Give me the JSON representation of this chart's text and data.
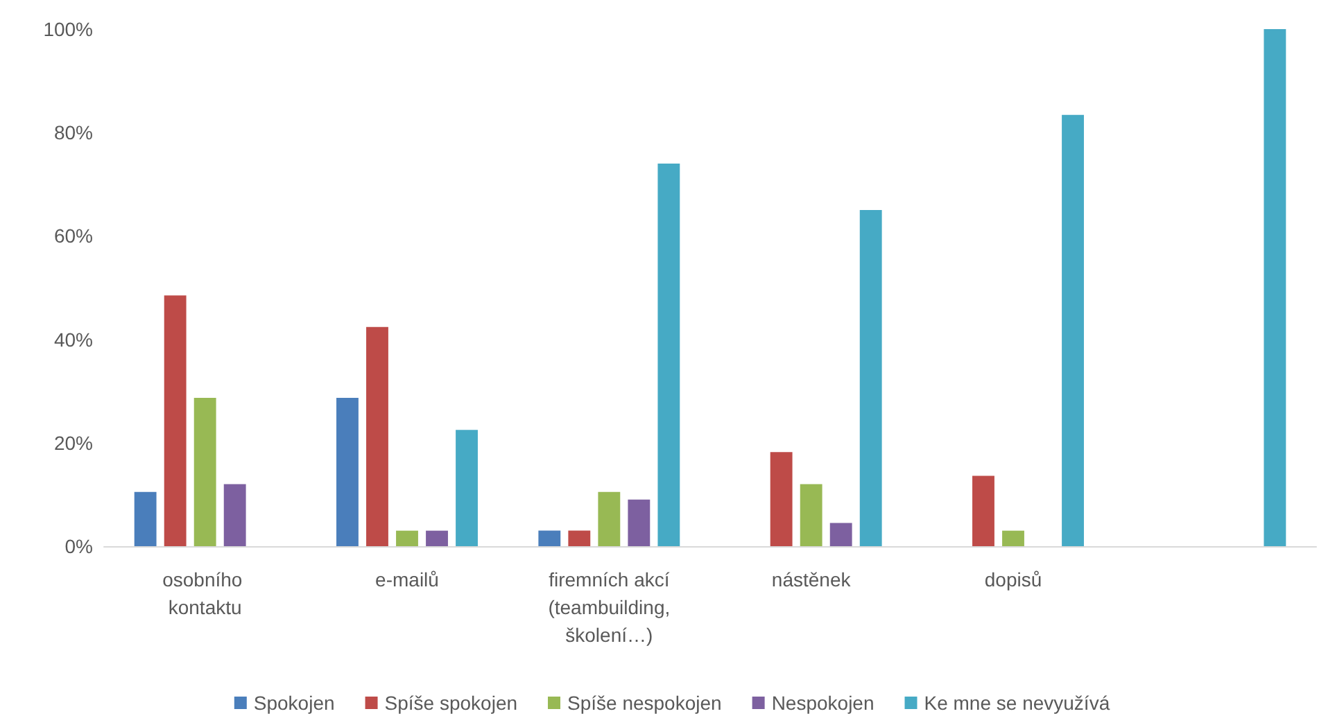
{
  "chart_data": {
    "type": "bar",
    "categories": [
      "osobního kontaktu",
      "e-mailů",
      "firemních akcí (teambuilding, školení…)",
      "nástěnek",
      "dopisů",
      null
    ],
    "series": [
      {
        "name": "Spokojen",
        "color": "#4a7ebb",
        "values": [
          10.5,
          28.7,
          3,
          0,
          0,
          0
        ]
      },
      {
        "name": "Spíše spokojen",
        "color": "#be4b48",
        "values": [
          48.5,
          42.4,
          3,
          18.2,
          13.6,
          0
        ]
      },
      {
        "name": "Spíše nespokojen",
        "color": "#98b954",
        "values": [
          28.7,
          3,
          10.5,
          12,
          3,
          0
        ]
      },
      {
        "name": "Nespokojen",
        "color": "#7d60a0",
        "values": [
          12,
          3,
          9,
          4.5,
          0,
          0
        ]
      },
      {
        "name": "Ke mne se nevyužívá",
        "color": "#46aac5",
        "values": [
          0,
          22.5,
          74,
          65,
          83.4,
          100
        ]
      }
    ],
    "ylim": [
      0,
      100
    ],
    "yticks": [
      {
        "value": 0,
        "label": "0%"
      },
      {
        "value": 20,
        "label": "20%"
      },
      {
        "value": 40,
        "label": "40%"
      },
      {
        "value": 60,
        "label": "60%"
      },
      {
        "value": 80,
        "label": "80%"
      },
      {
        "value": 100,
        "label": "100%"
      }
    ],
    "grid": false,
    "legend": "bottom"
  }
}
